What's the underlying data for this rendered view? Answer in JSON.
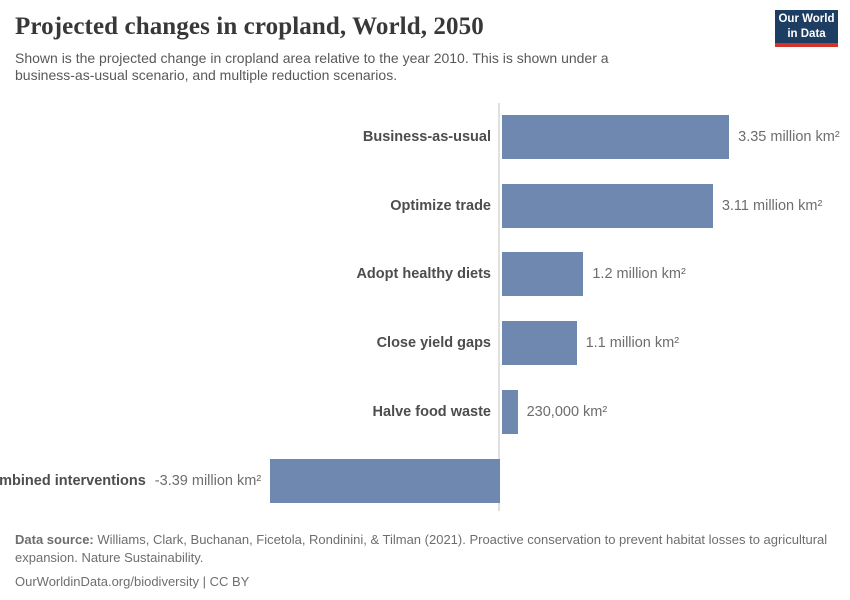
{
  "header": {
    "title": "Projected changes in cropland, World, 2050",
    "subtitle": "Shown is the projected change in cropland area relative to the year 2010. This is shown under a business-as-usual scenario, and multiple reduction scenarios.",
    "logo": {
      "line1": "Our World",
      "line2": "in Data",
      "background_color": "#1d3d63",
      "accent_color": "#d1342b"
    }
  },
  "chart_data": {
    "type": "bar",
    "orientation": "horizontal",
    "unit": "million km²",
    "categories": [
      "Business-as-usual",
      "Optimize trade",
      "Adopt healthy diets",
      "Close yield gaps",
      "Halve food waste",
      "Combined interventions"
    ],
    "values": [
      3.35,
      3.11,
      1.2,
      1.1,
      0.23,
      -3.39
    ],
    "value_labels": [
      "3.35 million km²",
      "3.11 million km²",
      "1.2 million km²",
      "1.1 million km²",
      "230,000 km²",
      "-3.39 million km²"
    ],
    "xlim": [
      -3.39,
      3.35
    ],
    "bar_color": "#6e88b0",
    "axis_color": "#e0e0e0",
    "grid": false,
    "legend": false
  },
  "footer": {
    "source_label": "Data source:",
    "source_text": " Williams, Clark, Buchanan, Ficetola, Rondinini, & Tilman (2021). Proactive conservation to prevent habitat losses to agricultural expansion. Nature Sustainability.",
    "link": "OurWorldinData.org/biodiversity",
    "separator": " | ",
    "license": "CC BY"
  }
}
